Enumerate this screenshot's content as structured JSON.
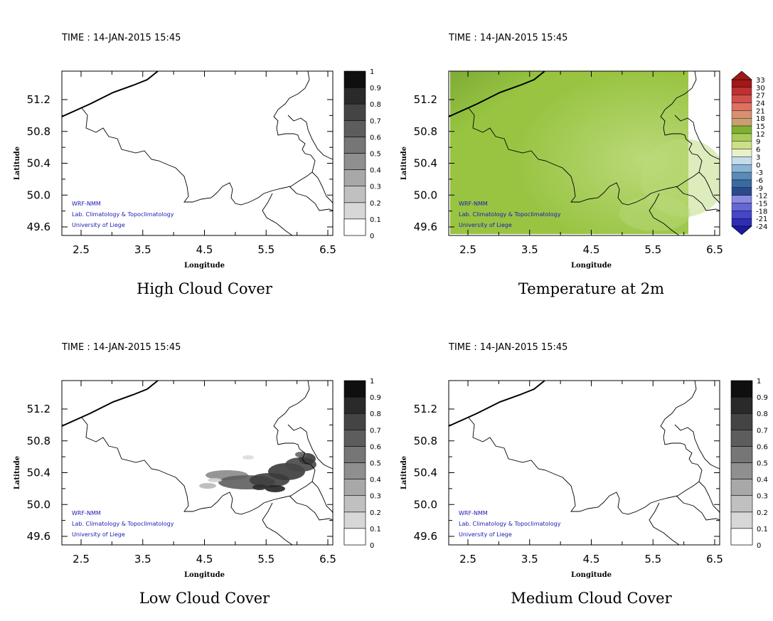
{
  "panels": [
    {
      "id": "high-cloud",
      "time_label": "TIME : 14-JAN-2015 15:45",
      "title": "High Cloud Cover",
      "xlabel": "Longitude",
      "ylabel": "Latitude",
      "x_ticks": [
        "2.5",
        "3.5",
        "4.5",
        "5.5",
        "6.5"
      ],
      "y_ticks": [
        "51.2",
        "50.8",
        "50.4",
        "50.0",
        "49.6"
      ],
      "watermark": [
        "WRF-NMM",
        "Lab. Climatology & Topoclimatology",
        "University of Liege"
      ],
      "colorbar": {
        "kind": "gray",
        "ticks": [
          "1",
          "0.9",
          "0.8",
          "0.7",
          "0.6",
          "0.5",
          "0.4",
          "0.3",
          "0.2",
          "0.1",
          "0"
        ]
      },
      "field": "none"
    },
    {
      "id": "temperature",
      "time_label": "TIME : 14-JAN-2015 15:45",
      "title": "Temperature at 2m",
      "xlabel": "Longitude",
      "ylabel": "Latitude",
      "x_ticks": [
        "2.5",
        "3.5",
        "4.5",
        "5.5",
        "6.5"
      ],
      "y_ticks": [
        "51.2",
        "50.8",
        "50.4",
        "50.0",
        "49.6"
      ],
      "watermark": [
        "WRF-NMM",
        "Lab. Climatology & Topoclimatology",
        "University of Liege"
      ],
      "colorbar": {
        "kind": "temperature",
        "ticks": [
          "33",
          "30",
          "27",
          "24",
          "21",
          "18",
          "15",
          "12",
          "9",
          "6",
          "3",
          "0",
          "-3",
          "-6",
          "-9",
          "-12",
          "-15",
          "-18",
          "-21",
          "-24"
        ]
      },
      "field": "temperature"
    },
    {
      "id": "low-cloud",
      "time_label": "TIME : 14-JAN-2015 15:45",
      "title": "Low Cloud Cover",
      "xlabel": "Longitude",
      "ylabel": "Latitude",
      "x_ticks": [
        "2.5",
        "3.5",
        "4.5",
        "5.5",
        "6.5"
      ],
      "y_ticks": [
        "51.2",
        "50.8",
        "50.4",
        "50.0",
        "49.6"
      ],
      "watermark": [
        "WRF-NMM",
        "Lab. Climatology & Topoclimatology",
        "University of Liege"
      ],
      "colorbar": {
        "kind": "gray",
        "ticks": [
          "1",
          "0.9",
          "0.8",
          "0.7",
          "0.6",
          "0.5",
          "0.4",
          "0.3",
          "0.2",
          "0.1",
          "0"
        ]
      },
      "field": "low-cloud"
    },
    {
      "id": "medium-cloud",
      "time_label": "TIME : 14-JAN-2015 15:45",
      "title": "Medium Cloud Cover",
      "xlabel": "Longitude",
      "ylabel": "Latitude",
      "x_ticks": [
        "2.5",
        "3.5",
        "4.5",
        "5.5",
        "6.5"
      ],
      "y_ticks": [
        "51.2",
        "50.8",
        "50.4",
        "50.0",
        "49.6"
      ],
      "watermark": [
        "WRF-NMM",
        "Lab. Climatology & Topoclimatology",
        "University of Liege"
      ],
      "colorbar": {
        "kind": "gray",
        "ticks": [
          "1",
          "0.9",
          "0.8",
          "0.7",
          "0.6",
          "0.5",
          "0.4",
          "0.3",
          "0.2",
          "0.1",
          "0"
        ]
      },
      "field": "none"
    }
  ],
  "colors": {
    "gray_scale": [
      "#ffffff",
      "#ececec",
      "#d7d7d7",
      "#c0c0c0",
      "#a8a8a8",
      "#8f8f8f",
      "#767676",
      "#5d5d5d",
      "#444444",
      "#2a2a2a",
      "#0f0f0f"
    ],
    "temperature_scale": [
      "#1a1aa0",
      "#2e2eb4",
      "#4646c8",
      "#6666d6",
      "#8a8ae0",
      "#2a4a8c",
      "#3a6aa0",
      "#5a8ab8",
      "#8ab4d6",
      "#c4dcec",
      "#e8f0c8",
      "#cce08a",
      "#a8cc5a",
      "#80b030",
      "#c8a070",
      "#d89070",
      "#e07060",
      "#d05050",
      "#c03030",
      "#a01818"
    ],
    "temp_base": "#98c442",
    "temp_cool": "#7eab36",
    "temp_warm": "#bbd97a",
    "watermark": "#1a1ab4"
  }
}
